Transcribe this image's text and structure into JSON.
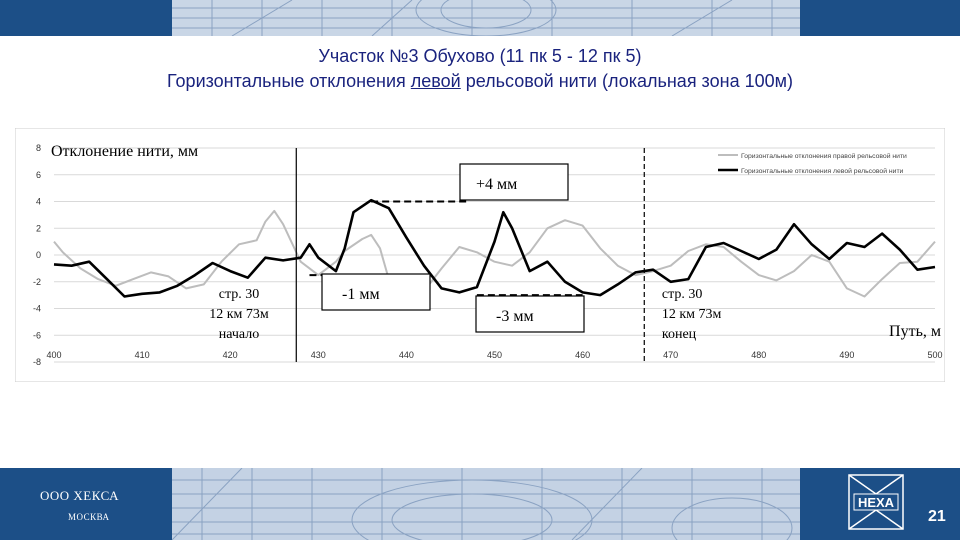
{
  "slide": {
    "title_line1": "Участок №3 Обухово (11 пк 5 - 12 пк 5)",
    "title_line2_before": "Горизонтальные отклонения ",
    "title_line2_underlined": "левой",
    "title_line2_after": " рельсовой нити (локальная зона 100м)",
    "company": "ООО ХЕКСА",
    "city": "МОСКВА",
    "logo_text": "HEXA",
    "page_number": "21"
  },
  "colors": {
    "band": "#1c4f87",
    "title": "#1a237e",
    "left_series": "#000000",
    "right_series": "#bdbdbd",
    "grid": "#d9d9d9"
  },
  "chart_data": {
    "type": "line",
    "ylabel": "Отклонение нити, мм",
    "xlabel": "Путь, м",
    "xlim": [
      400,
      500
    ],
    "ylim": [
      -8,
      8
    ],
    "xticks": [
      "400",
      "410",
      "420",
      "430",
      "440",
      "450",
      "460",
      "470",
      "480",
      "490",
      "500"
    ],
    "yticks": [
      "8",
      "6",
      "4",
      "2",
      "0",
      "-2",
      "-4",
      "-6",
      "-8"
    ],
    "grid": true,
    "legend_position": "top-right",
    "series": [
      {
        "name": "Горизонтальные отклонения правой рельсовой нити",
        "color": "#bdbdbd",
        "x": [
          400,
          401,
          403,
          405,
          407,
          409,
          411,
          413,
          415,
          417,
          419,
          421,
          423,
          424,
          425,
          426,
          428,
          430,
          432,
          433,
          435,
          436,
          437,
          438,
          440,
          442,
          444,
          446,
          448,
          450,
          452,
          454,
          456,
          458,
          460,
          462,
          464,
          466,
          468,
          470,
          472,
          474,
          476,
          478,
          480,
          482,
          484,
          486,
          488,
          490,
          492,
          494,
          496,
          498,
          500
        ],
        "y": [
          1.0,
          0.2,
          -1.0,
          -1.8,
          -2.3,
          -1.8,
          -1.3,
          -1.6,
          -2.5,
          -2.2,
          -0.5,
          0.8,
          1.1,
          2.5,
          3.3,
          2.3,
          -0.5,
          -1.5,
          -0.5,
          0.3,
          1.2,
          1.5,
          0.5,
          -1.8,
          -2.5,
          -2.7,
          -1.0,
          0.6,
          0.2,
          -0.5,
          -0.8,
          0.2,
          2.0,
          2.6,
          2.2,
          0.5,
          -0.8,
          -1.5,
          -1.2,
          -0.8,
          0.3,
          0.8,
          0.6,
          -0.5,
          -1.5,
          -1.9,
          -1.2,
          0.0,
          -0.5,
          -2.5,
          -3.1,
          -1.8,
          -0.6,
          -0.5,
          1.0
        ]
      },
      {
        "name": "Горизонтальные отклонения левой рельсовой нити",
        "color": "#000000",
        "x": [
          400,
          402,
          404,
          406,
          408,
          410,
          412,
          414,
          416,
          418,
          420,
          422,
          424,
          426,
          428,
          429,
          430,
          432,
          433,
          434,
          436,
          438,
          440,
          442,
          444,
          446,
          448,
          450,
          451,
          452,
          454,
          456,
          458,
          460,
          462,
          464,
          466,
          468,
          470,
          472,
          474,
          476,
          478,
          480,
          482,
          484,
          486,
          488,
          490,
          492,
          494,
          496,
          498,
          500
        ],
        "y": [
          -0.7,
          -0.8,
          -0.5,
          -1.8,
          -3.1,
          -2.9,
          -2.8,
          -2.3,
          -1.5,
          -0.6,
          -1.2,
          -1.7,
          -0.2,
          -0.4,
          -0.2,
          0.8,
          -0.2,
          -1.2,
          0.5,
          3.2,
          4.1,
          3.5,
          1.3,
          -0.8,
          -2.5,
          -2.8,
          -2.4,
          1.0,
          3.2,
          2.0,
          -1.2,
          -0.5,
          -2.0,
          -2.8,
          -3.0,
          -2.2,
          -1.3,
          -1.1,
          -2.0,
          -1.8,
          0.6,
          0.9,
          0.3,
          -0.3,
          0.4,
          2.3,
          0.8,
          -0.3,
          0.9,
          0.6,
          1.6,
          0.4,
          -1.1,
          -0.9
        ]
      }
    ],
    "vertical_markers": [
      {
        "x": 427.5,
        "style": "solid",
        "labels": [
          "стр. 30",
          "12 км 73м",
          "начало"
        ]
      },
      {
        "x": 467,
        "style": "dashed",
        "labels": [
          "стр. 30",
          "12 км 73м",
          "конец"
        ]
      }
    ],
    "annotations": [
      {
        "text": "+4 мм",
        "level": 4,
        "x_from": 436,
        "x_to": 447
      },
      {
        "text": "-1 мм",
        "level": -1.5,
        "x_from": 429,
        "x_to": 442
      },
      {
        "text": "-3 мм",
        "level": -3,
        "x_from": 448,
        "x_to": 460
      }
    ]
  }
}
